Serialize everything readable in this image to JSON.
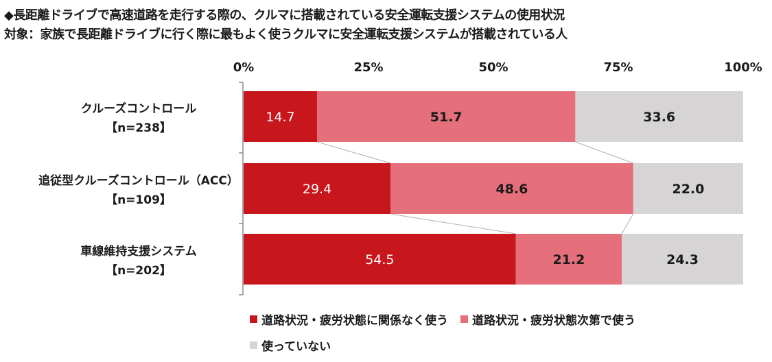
{
  "title_line1": "◆長距離ドライブで高速道路を走行する際の、クルマに搭載されている安全運転支援システムの使用状況",
  "title_line2": "対象：家族で長距離ドライブに行く際に最もよく使うクルマに安全運転支援システムが搭載されている人",
  "chart_data": {
    "type": "bar",
    "orientation": "horizontal",
    "stacked": true,
    "xlim": [
      0,
      100
    ],
    "ticks": [
      "0%",
      "25%",
      "50%",
      "75%",
      "100%"
    ],
    "categories": [
      {
        "name": "クルーズコントロール",
        "n": "【n=238】"
      },
      {
        "name": "追従型クルーズコントロール（ACC）",
        "n": "【n=109】"
      },
      {
        "name": "車線維持支援システム",
        "n": "【n=202】"
      }
    ],
    "series": [
      {
        "name": "道路状況・疲労状態に関係なく使う",
        "color": "#c8161d",
        "text_color": "#ffffff",
        "values": [
          14.7,
          29.4,
          54.5
        ]
      },
      {
        "name": "道路状況・疲労状態次第で使う",
        "color": "#e56f7b",
        "text_color": "#1a1a1a",
        "values": [
          51.7,
          48.6,
          21.2
        ]
      },
      {
        "name": "使っていない",
        "color": "#d6d4d5",
        "text_color": "#1a1a1a",
        "values": [
          33.6,
          22.0,
          24.3
        ]
      }
    ],
    "value_labels": [
      [
        "14.7",
        "29.4",
        "54.5"
      ],
      [
        "51.7",
        "48.6",
        "21.2"
      ],
      [
        "33.6",
        "22.0",
        "24.3"
      ]
    ],
    "legend_position": "bottom",
    "grid": false
  }
}
